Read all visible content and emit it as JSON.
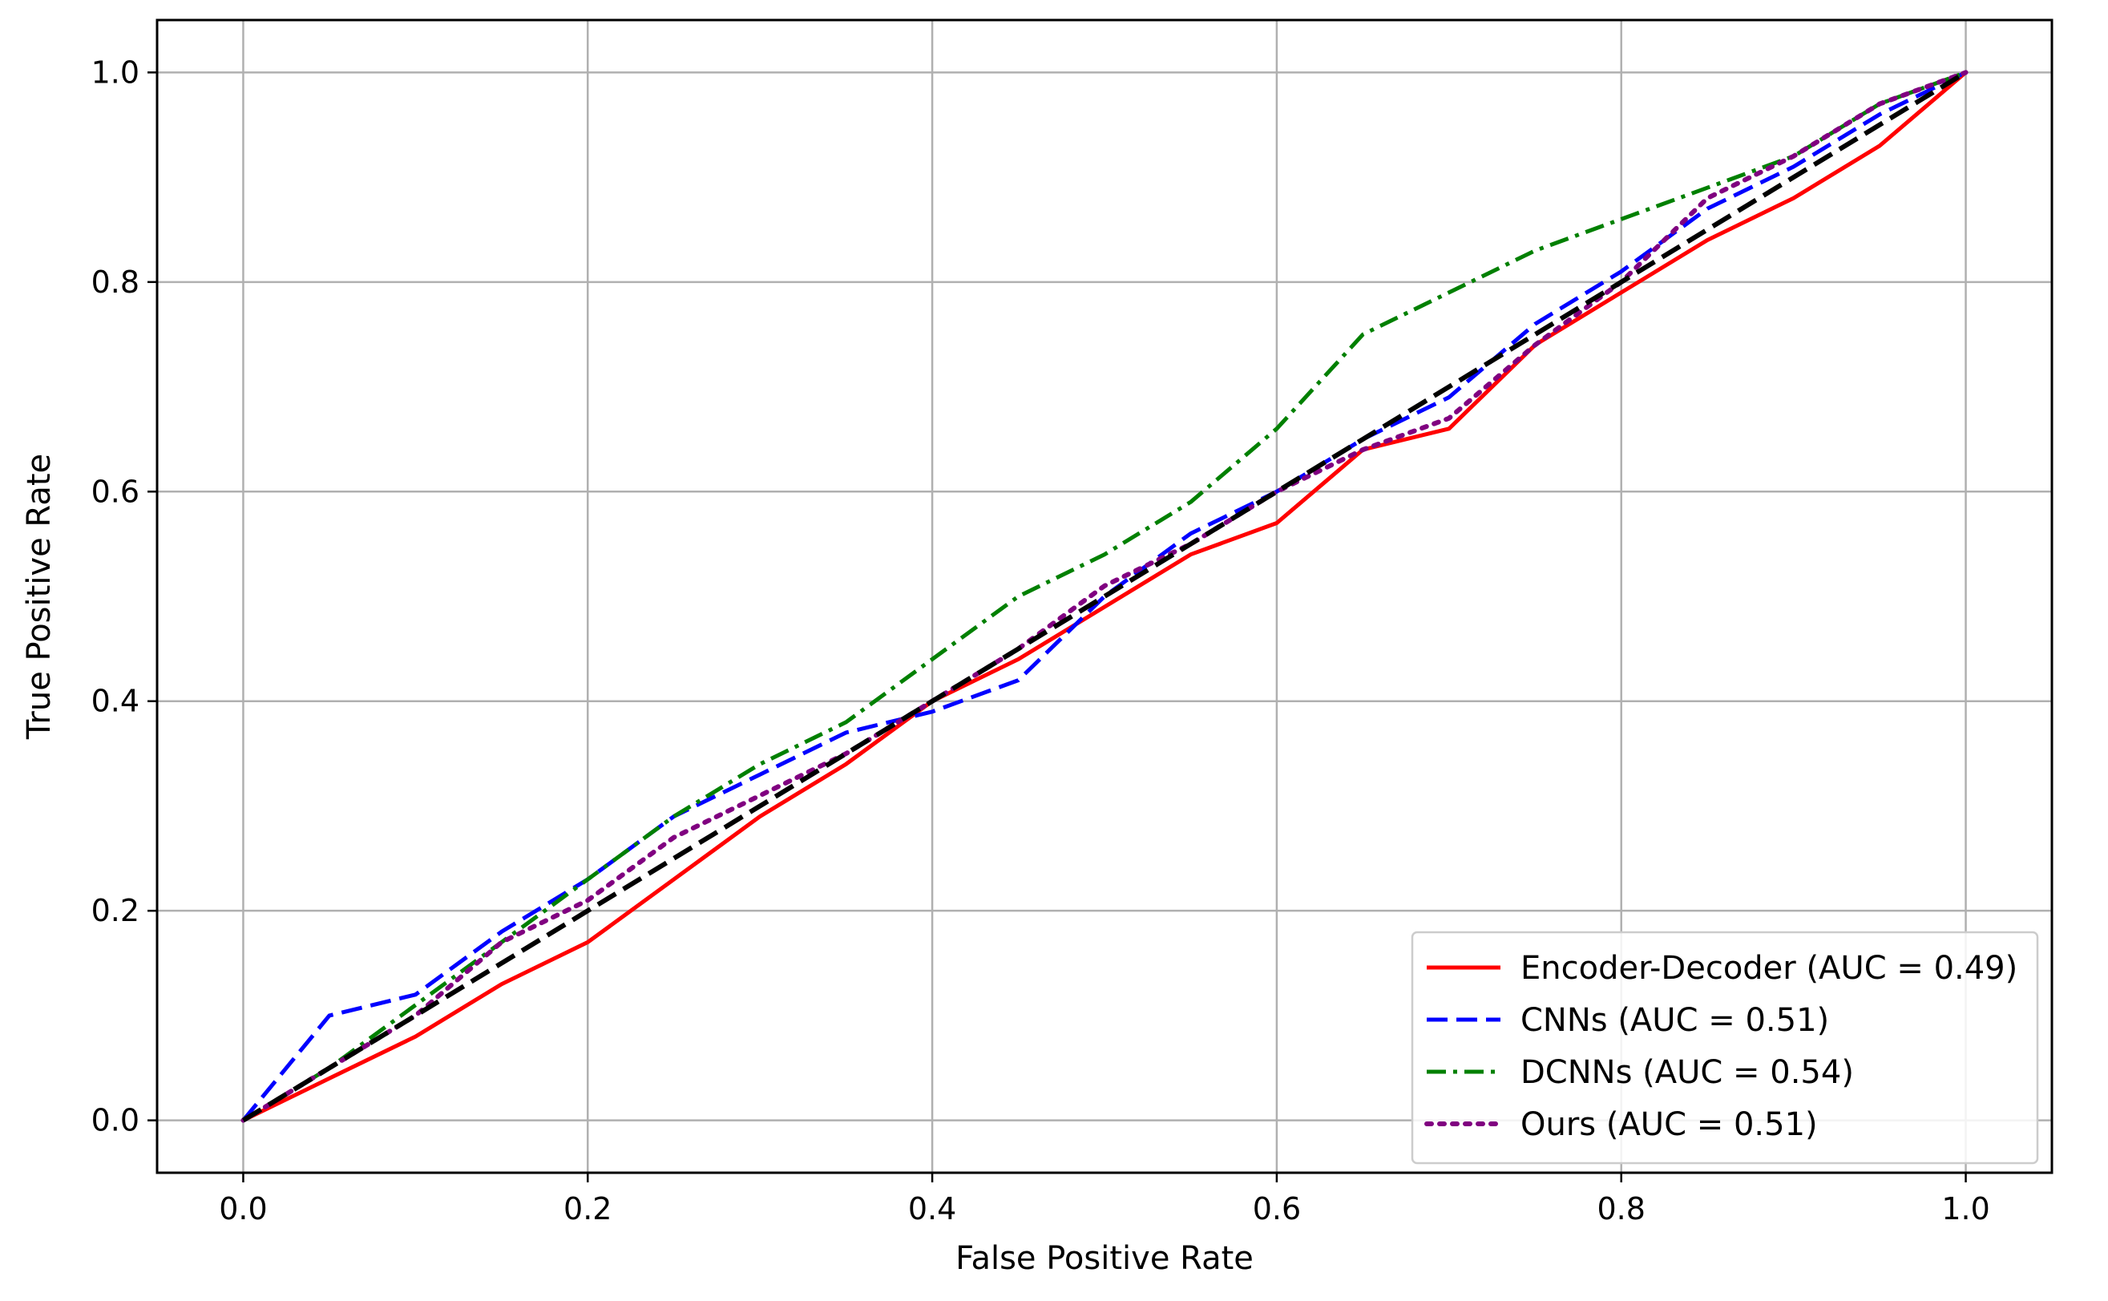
{
  "chart_data": {
    "type": "line",
    "title": "",
    "xlabel": "False Positive Rate",
    "ylabel": "True Positive Rate",
    "xlim": [
      -0.05,
      1.05
    ],
    "ylim": [
      -0.05,
      1.05
    ],
    "xticks": [
      "0.0",
      "0.2",
      "0.4",
      "0.6",
      "0.8",
      "1.0"
    ],
    "yticks": [
      "0.0",
      "0.2",
      "0.4",
      "0.6",
      "0.8",
      "1.0"
    ],
    "grid": true,
    "legend_position": "lower-right",
    "series": [
      {
        "name": "Encoder-Decoder (AUC = 0.49)",
        "color": "#ff0000",
        "style": "solid",
        "x": [
          0,
          0.05,
          0.1,
          0.15,
          0.2,
          0.25,
          0.3,
          0.35,
          0.4,
          0.45,
          0.5,
          0.55,
          0.6,
          0.65,
          0.7,
          0.75,
          0.8,
          0.85,
          0.9,
          0.95,
          1.0
        ],
        "y": [
          0,
          0.04,
          0.08,
          0.13,
          0.17,
          0.23,
          0.29,
          0.34,
          0.4,
          0.44,
          0.49,
          0.54,
          0.57,
          0.64,
          0.66,
          0.74,
          0.79,
          0.84,
          0.88,
          0.93,
          1.0
        ]
      },
      {
        "name": "CNNs (AUC = 0.51)",
        "color": "#0000ff",
        "style": "dashed",
        "x": [
          0,
          0.05,
          0.1,
          0.15,
          0.2,
          0.25,
          0.3,
          0.35,
          0.4,
          0.45,
          0.5,
          0.55,
          0.6,
          0.65,
          0.7,
          0.75,
          0.8,
          0.85,
          0.9,
          0.95,
          1.0
        ],
        "y": [
          0,
          0.1,
          0.12,
          0.18,
          0.23,
          0.29,
          0.33,
          0.37,
          0.39,
          0.42,
          0.5,
          0.56,
          0.6,
          0.65,
          0.69,
          0.76,
          0.81,
          0.87,
          0.91,
          0.96,
          1.0
        ]
      },
      {
        "name": "DCNNs (AUC = 0.54)",
        "color": "#008000",
        "style": "dashdot",
        "x": [
          0,
          0.05,
          0.1,
          0.15,
          0.2,
          0.25,
          0.3,
          0.35,
          0.4,
          0.45,
          0.5,
          0.55,
          0.6,
          0.65,
          0.7,
          0.75,
          0.8,
          0.85,
          0.9,
          0.95,
          1.0
        ],
        "y": [
          0,
          0.05,
          0.11,
          0.17,
          0.23,
          0.29,
          0.34,
          0.38,
          0.44,
          0.5,
          0.54,
          0.59,
          0.66,
          0.75,
          0.79,
          0.83,
          0.86,
          0.89,
          0.92,
          0.97,
          1.0
        ]
      },
      {
        "name": "Ours (AUC = 0.51)",
        "color": "#800080",
        "style": "dotted",
        "x": [
          0,
          0.05,
          0.1,
          0.15,
          0.2,
          0.25,
          0.3,
          0.35,
          0.4,
          0.45,
          0.5,
          0.55,
          0.6,
          0.65,
          0.7,
          0.75,
          0.8,
          0.85,
          0.9,
          0.95,
          1.0
        ],
        "y": [
          0,
          0.05,
          0.1,
          0.17,
          0.21,
          0.27,
          0.31,
          0.35,
          0.4,
          0.45,
          0.51,
          0.55,
          0.6,
          0.64,
          0.67,
          0.74,
          0.8,
          0.88,
          0.92,
          0.97,
          1.0
        ]
      },
      {
        "name": "",
        "color": "#000000",
        "style": "dashed-thick",
        "x": [
          0,
          1
        ],
        "y": [
          0,
          1
        ]
      }
    ]
  }
}
